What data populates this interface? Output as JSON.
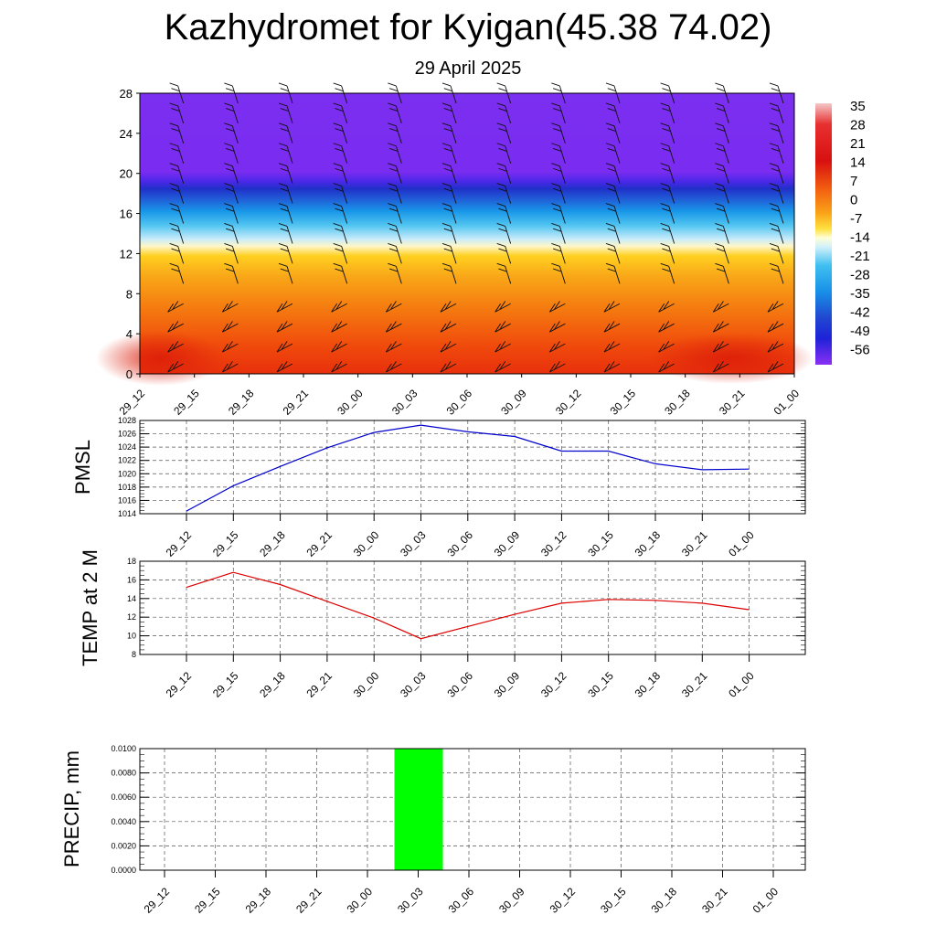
{
  "title": "Kazhydromet for Kyigan(45.38 74.02)",
  "subtitle": "29 April 2025",
  "chart_data": [
    {
      "type": "heatmap",
      "panel": "cross-section",
      "x_categories": [
        "29_12",
        "29_15",
        "29_18",
        "29_21",
        "30_00",
        "30_03",
        "30_06",
        "30_09",
        "30_12",
        "30_15",
        "30_18",
        "30_21",
        "01_00"
      ],
      "yticks": [
        0,
        4,
        8,
        12,
        16,
        20,
        24,
        28
      ],
      "ylim": [
        0,
        28
      ],
      "colorbar_labels": [
        "35",
        "28",
        "21",
        "14",
        "7",
        "0",
        "-7",
        "-14",
        "-21",
        "-28",
        "-35",
        "-42",
        "-49",
        "-56"
      ],
      "temperature_by_height": [
        [
          0,
          18
        ],
        [
          4,
          16
        ],
        [
          8,
          12
        ],
        [
          12,
          7
        ],
        [
          13,
          -14
        ],
        [
          14,
          -24
        ],
        [
          16,
          -40
        ],
        [
          18,
          -52
        ],
        [
          19,
          -57
        ],
        [
          28,
          -58
        ]
      ],
      "wind_barbs": true
    },
    {
      "type": "line",
      "panel": "pmsl",
      "ylabel": "PMSL",
      "x": [
        "29_12",
        "29_15",
        "29_18",
        "29_21",
        "30_00",
        "30_03",
        "30_06",
        "30_09",
        "30_12",
        "30_15",
        "30_18",
        "30_21",
        "01_00"
      ],
      "yticks": [
        "1028",
        "1026",
        "1024",
        "1022",
        "1020",
        "1018",
        "1016",
        "1014"
      ],
      "ylim": [
        1014,
        1028
      ],
      "color": "#0000cc",
      "values": [
        1014.4,
        1018.2,
        1021.1,
        1023.9,
        1026.2,
        1027.3,
        1026.3,
        1025.6,
        1023.4,
        1023.4,
        1021.5,
        1020.6,
        1020.7
      ]
    },
    {
      "type": "line",
      "panel": "temp2m",
      "ylabel": "TEMP at 2 M",
      "x": [
        "29_12",
        "29_15",
        "29_18",
        "29_21",
        "30_00",
        "30_03",
        "30_06",
        "30_09",
        "30_12",
        "30_15",
        "30_18",
        "30_21",
        "01_00"
      ],
      "yticks": [
        "18",
        "16",
        "14",
        "12",
        "10",
        "8"
      ],
      "ylim": [
        8,
        18
      ],
      "color": "#dd0000",
      "values": [
        15.2,
        16.8,
        15.5,
        13.7,
        11.9,
        9.7,
        11.0,
        12.3,
        13.5,
        13.9,
        13.8,
        13.5,
        12.8
      ]
    },
    {
      "type": "bar",
      "panel": "precip",
      "ylabel": "PRECIP, mm",
      "x": [
        "29_12",
        "29_15",
        "29_18",
        "29_21",
        "30_00",
        "30_03",
        "30_06",
        "30_09",
        "30_12",
        "30_15",
        "30_18",
        "30_21",
        "01_00"
      ],
      "yticks": [
        "0.0100",
        "0.0080",
        "0.0060",
        "0.0040",
        "0.0020",
        "0.0000"
      ],
      "ylim": [
        0,
        0.01
      ],
      "color": "#00ff00",
      "values": [
        0,
        0,
        0,
        0,
        0,
        0.01,
        0,
        0,
        0,
        0,
        0,
        0,
        0
      ]
    }
  ]
}
